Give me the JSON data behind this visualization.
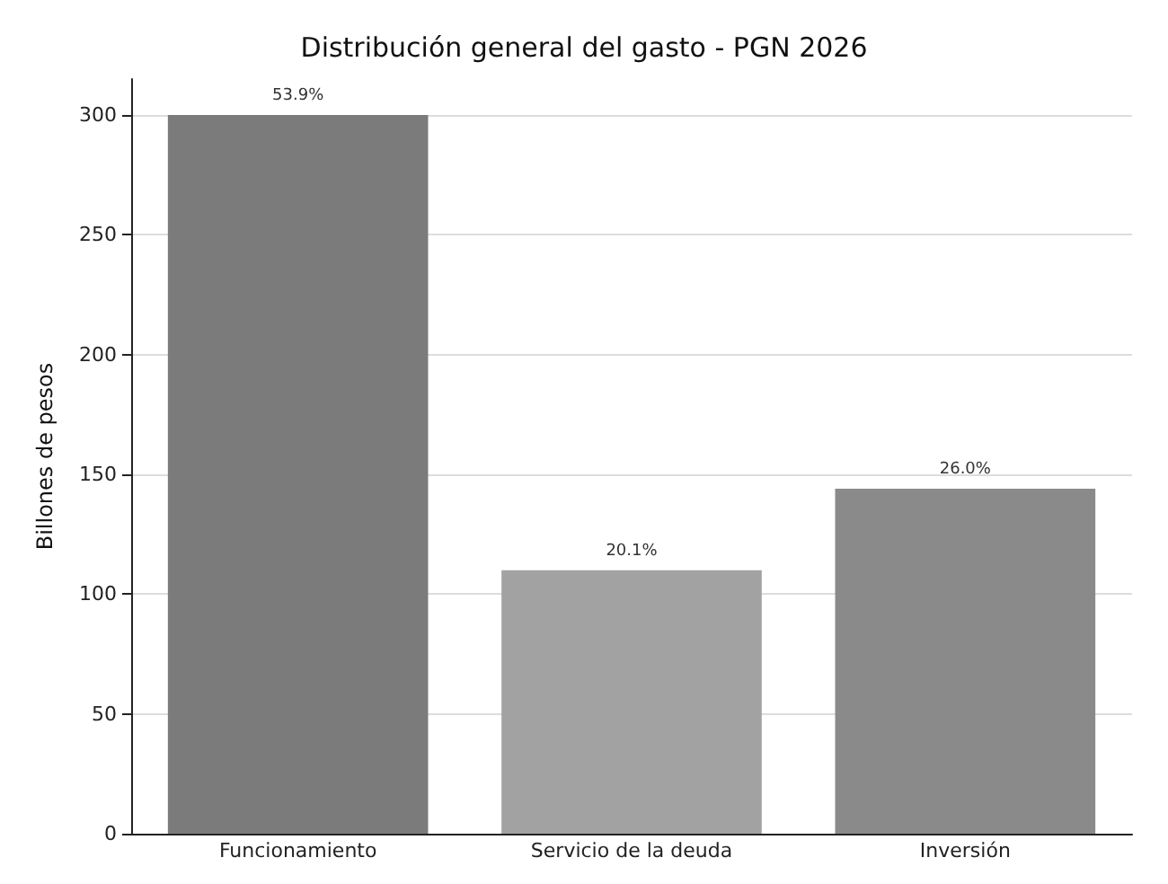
{
  "chart_data": {
    "type": "bar",
    "title": "Distribución general del gasto - PGN 2026",
    "ylabel": "Billones de pesos",
    "categories": [
      "Funcionamiento",
      "Servicio de la deuda",
      "Inversión"
    ],
    "values": [
      300,
      110,
      144
    ],
    "colors": [
      "#7b7b7b",
      "#a2a2a2",
      "#8a8a8a"
    ],
    "annotations": [
      {
        "text": "53.9%",
        "x": "Funcionamiento",
        "y": 300
      },
      {
        "text": "20.1%",
        "x": "Servicio de la deuda",
        "y": 110
      },
      {
        "text": "26.0%",
        "x": "Inversión",
        "y": 144
      }
    ],
    "ylim": [
      0,
      315
    ],
    "yticks": [
      0,
      50,
      100,
      150,
      200,
      250,
      300
    ],
    "grid": "y"
  }
}
